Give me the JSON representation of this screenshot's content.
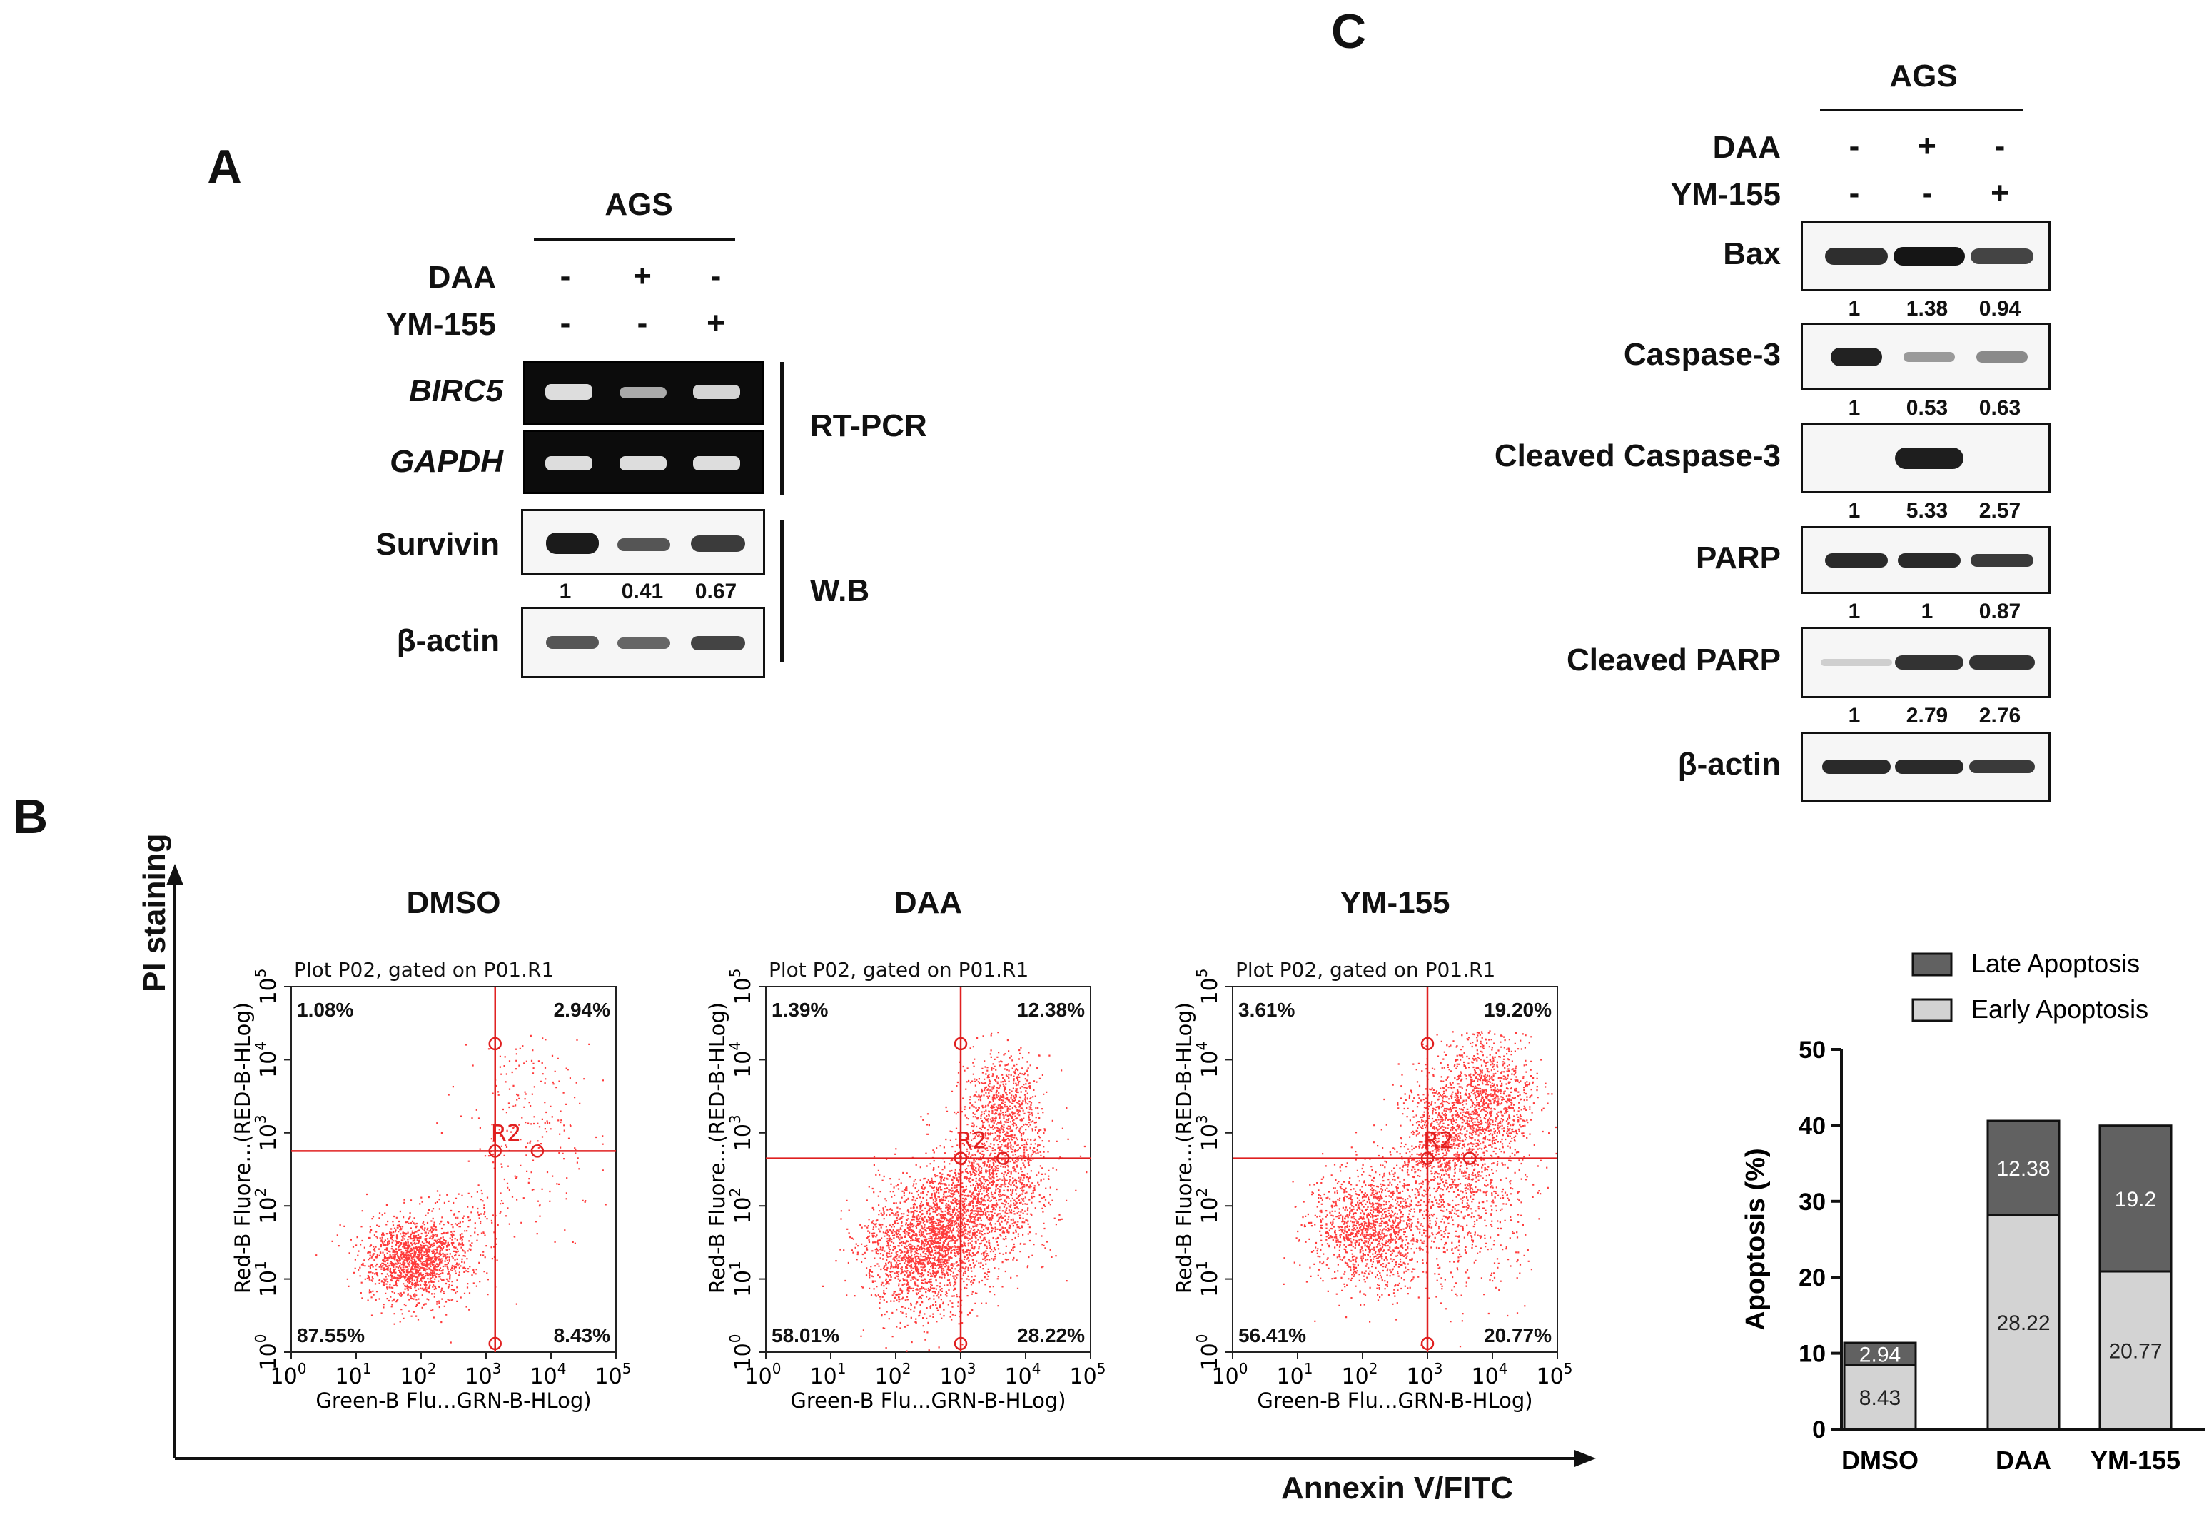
{
  "panels": {
    "A": "A",
    "B": "B",
    "C": "C"
  },
  "panelA": {
    "cell_line": "AGS",
    "row_labels": {
      "daa": "DAA",
      "ym155": "YM-155"
    },
    "daa_signs": [
      "-",
      "+",
      "-"
    ],
    "ym_signs": [
      "-",
      "-",
      "+"
    ],
    "genes": {
      "birc5": "BIRC5",
      "gapdh": "GAPDH"
    },
    "method_rt": "RT-PCR",
    "method_wb": "W.B",
    "proteins": {
      "survivin": "Survivin",
      "actin": "β-actin"
    },
    "survivin_values": [
      "1",
      "0.41",
      "0.67"
    ]
  },
  "panelC": {
    "cell_line": "AGS",
    "row_labels": {
      "daa": "DAA",
      "ym155": "YM-155"
    },
    "daa_signs": [
      "-",
      "+",
      "-"
    ],
    "ym_signs": [
      "-",
      "-",
      "+"
    ],
    "blots": [
      {
        "label": "Bax",
        "values": [
          "1",
          "1.38",
          "0.94"
        ]
      },
      {
        "label": "Caspase-3",
        "values": [
          "1",
          "0.53",
          "0.63"
        ]
      },
      {
        "label": "Cleaved Caspase-3",
        "values": [
          "1",
          "5.33",
          "2.57"
        ]
      },
      {
        "label": "PARP",
        "values": [
          "1",
          "1",
          "0.87"
        ]
      },
      {
        "label": "Cleaved PARP",
        "values": [
          "1",
          "2.79",
          "2.76"
        ]
      },
      {
        "label": "β-actin",
        "values": []
      }
    ]
  },
  "panelB": {
    "y_axis_label": "PI staining",
    "x_axis_label": "Annexin V/FITC",
    "plots": [
      {
        "title": "DMSO",
        "header": "Plot P02, gated on P01.R1",
        "q_ul": "1.08%",
        "q_ur": "2.94%",
        "q_ll": "87.55%",
        "q_lr": "8.43%",
        "gate": "R2",
        "ylabel": "Red-B Fluore...(RED-B-HLog)",
        "xlabel": "Green-B Flu...GRN-B-HLog)"
      },
      {
        "title": "DAA",
        "header": "Plot P02, gated on P01.R1",
        "q_ul": "1.39%",
        "q_ur": "12.38%",
        "q_ll": "58.01%",
        "q_lr": "28.22%",
        "gate": "R2",
        "ylabel": "Red-B Fluore...(RED-B-HLog)",
        "xlabel": "Green-B Flu...GRN-B-HLog)"
      },
      {
        "title": "YM-155",
        "header": "Plot P02, gated on P01.R1",
        "q_ul": "3.61%",
        "q_ur": "19.20%",
        "q_ll": "56.41%",
        "q_lr": "20.77%",
        "gate": "R2",
        "ylabel": "Red-B Fluore...(RED-B-HLog)",
        "xlabel": "Green-B Flu...GRN-B-HLog)"
      }
    ],
    "tick_exponents": [
      "0",
      "1",
      "2",
      "3",
      "4",
      "5"
    ],
    "tick_base": "10"
  },
  "chart_data": {
    "type": "bar",
    "stacked": true,
    "categories": [
      "DMSO",
      "DAA",
      "YM-155"
    ],
    "series": [
      {
        "name": "Early Apoptosis",
        "values": [
          8.43,
          28.22,
          20.77
        ],
        "labels": [
          "8.43",
          "28.22",
          "20.77"
        ],
        "color": "#d3d3d3"
      },
      {
        "name": "Late Apoptosis",
        "values": [
          2.94,
          12.38,
          19.2
        ],
        "labels": [
          "2.94",
          "12.38",
          "19.2"
        ],
        "color": "#616161"
      }
    ],
    "ylabel": "Apoptosis (%)",
    "xlabel": "",
    "ylim": [
      0,
      50
    ],
    "yticks": [
      "0",
      "10",
      "20",
      "30",
      "40",
      "50"
    ],
    "legend": [
      "Late Apoptosis",
      "Early Apoptosis"
    ],
    "legend_position": "top-right"
  }
}
